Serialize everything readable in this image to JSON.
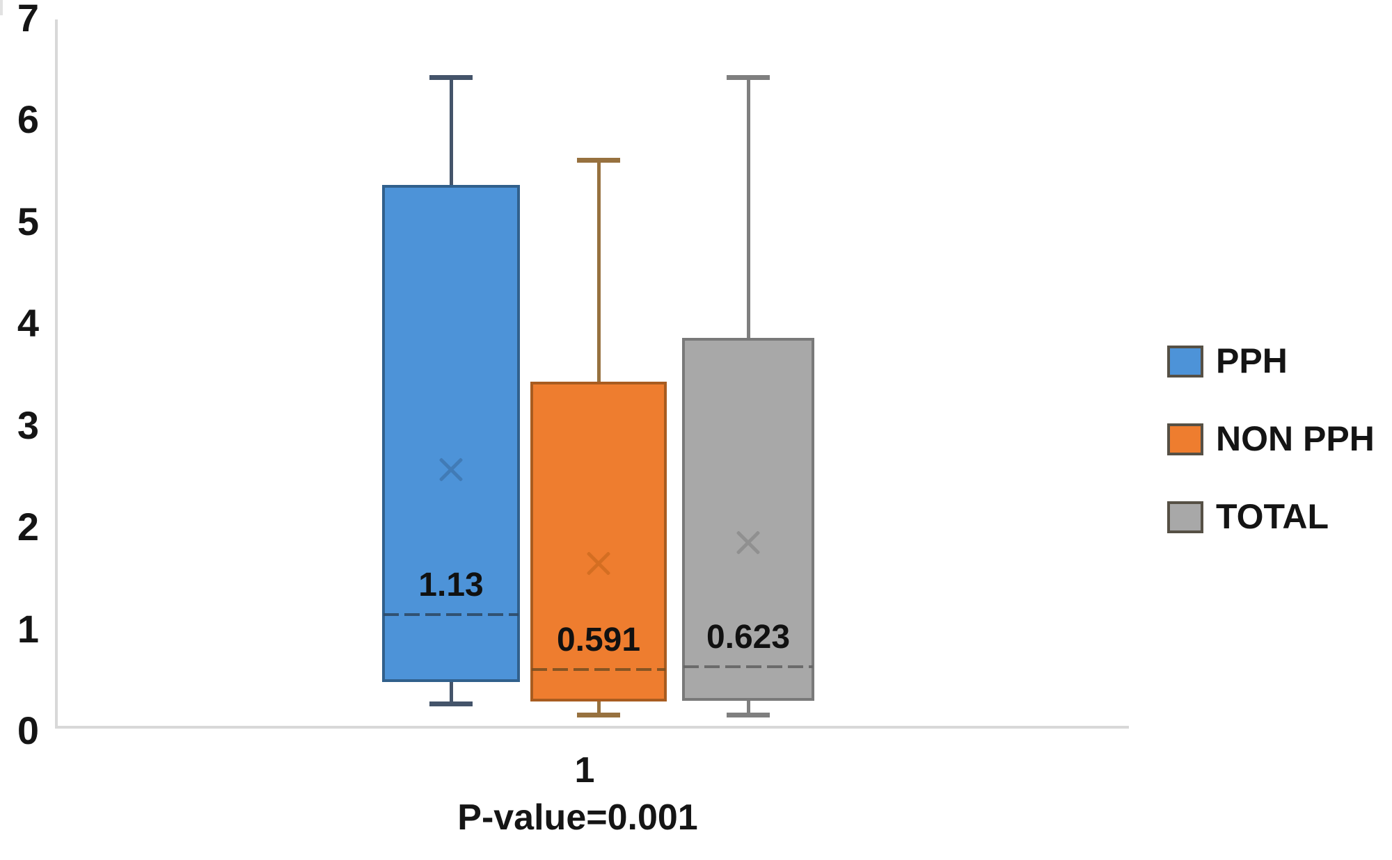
{
  "chart_data": {
    "type": "box",
    "title": "",
    "categories": [
      "1"
    ],
    "xtick_label": "1",
    "x_axis_annotation": "P-value=0.001",
    "ylim": [
      0,
      7
    ],
    "yticks": [
      0,
      1,
      2,
      3,
      4,
      5,
      6,
      7
    ],
    "grid": false,
    "legend_position": "right",
    "axis_color": "#d8d8d8",
    "text_color": "#151515",
    "series": [
      {
        "name": "PPH",
        "min": 0.26,
        "q1": 0.47,
        "median": 1.13,
        "q3": 5.35,
        "max": 6.41,
        "mean": 2.56,
        "median_label": "1.13",
        "fill": "#4d93d8",
        "border": "#31608c",
        "whisker": "#44546a",
        "median_color": "#2e4a66",
        "mean_color": "#38699c"
      },
      {
        "name": "NON PPH",
        "min": 0.15,
        "q1": 0.28,
        "median": 0.591,
        "q3": 3.42,
        "max": 5.6,
        "mean": 1.64,
        "median_label": "0.591",
        "fill": "#ee7d2f",
        "border": "#a85c20",
        "whisker": "#97713f",
        "median_color": "#7a4f22",
        "mean_color": "#c06318"
      },
      {
        "name": "TOTAL",
        "min": 0.15,
        "q1": 0.29,
        "median": 0.623,
        "q3": 3.85,
        "max": 6.41,
        "mean": 1.84,
        "median_label": "0.623",
        "fill": "#a8a8a8",
        "border": "#797979",
        "whisker": "#7f7f7f",
        "median_color": "#646464",
        "mean_color": "#7d7d7d"
      }
    ]
  },
  "legend": {
    "items": [
      "PPH",
      "NON PPH",
      "TOTAL"
    ]
  }
}
